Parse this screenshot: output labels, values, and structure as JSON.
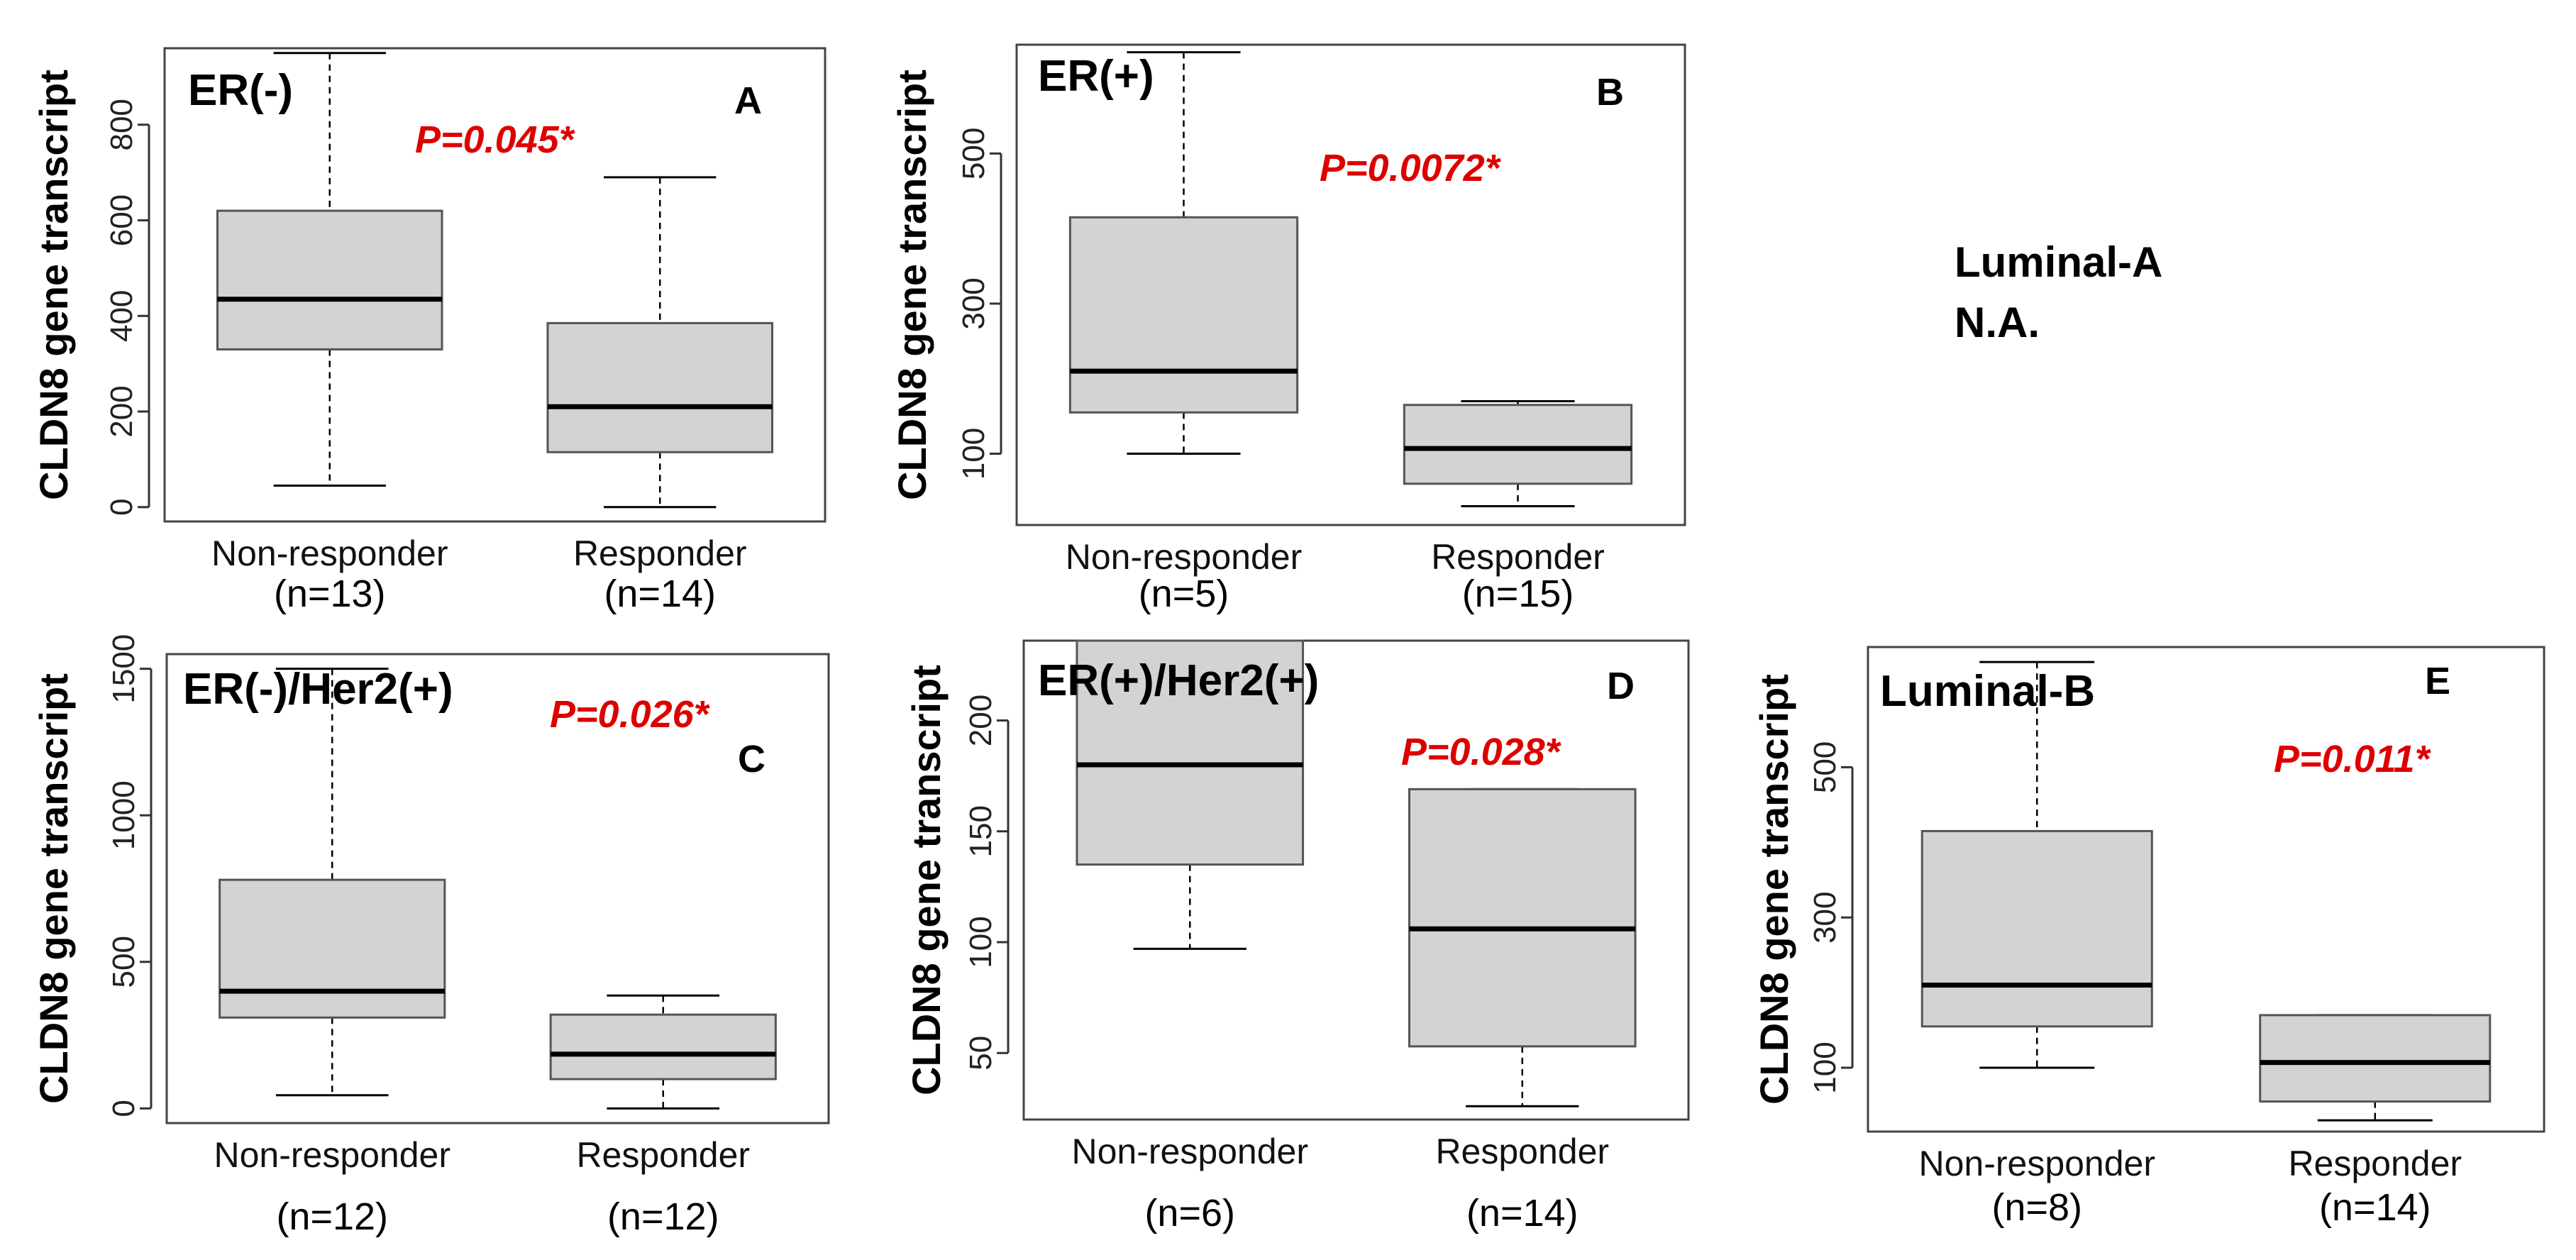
{
  "colors": {
    "box_fill": "#d3d3d3",
    "pvalue": "#dd0000",
    "line": "#000000",
    "frame": "#444444"
  },
  "note": {
    "line1": "Luminal-A",
    "line2": "N.A."
  },
  "chart_data": [
    {
      "type": "boxplot",
      "letter": "A",
      "title": "ER(-)",
      "pvalue": "P=0.045*",
      "ylabel": "CLDN8 gene transcript",
      "ylim": [
        -30,
        960
      ],
      "yticks": [
        0,
        200,
        400,
        600,
        800
      ],
      "categories": [
        "Non-responder",
        "Responder"
      ],
      "n_labels": [
        "(n=13)",
        "(n=14)"
      ],
      "boxes": [
        {
          "min": 45,
          "q1": 330,
          "median": 435,
          "q3": 620,
          "max": 950
        },
        {
          "min": 0,
          "q1": 115,
          "median": 210,
          "q3": 385,
          "max": 690
        }
      ]
    },
    {
      "type": "boxplot",
      "letter": "B",
      "title": "ER(+)",
      "pvalue": "P=0.0072*",
      "ylabel": "CLDN8 gene transcript",
      "ylim": [
        5,
        645
      ],
      "yticks": [
        100,
        300,
        500
      ],
      "categories": [
        "Non-responder",
        "Responder"
      ],
      "n_labels": [
        "(n=5)",
        "(n=15)"
      ],
      "boxes": [
        {
          "min": 100,
          "q1": 155,
          "median": 210,
          "q3": 415,
          "max": 635
        },
        {
          "min": 30,
          "q1": 60,
          "median": 107,
          "q3": 165,
          "max": 170
        }
      ]
    },
    {
      "type": "boxplot",
      "letter": "C",
      "title": "ER(-)/Her2(+)",
      "pvalue": "P=0.026*",
      "ylabel": "CLDN8 gene transcript",
      "ylim": [
        -50,
        1550
      ],
      "yticks": [
        0,
        500,
        1000,
        1500
      ],
      "categories": [
        "Non-responder",
        "Responder"
      ],
      "n_labels": [
        "(n=12)",
        "(n=12)"
      ],
      "boxes": [
        {
          "min": 45,
          "q1": 310,
          "median": 400,
          "q3": 780,
          "max": 1500
        },
        {
          "min": 0,
          "q1": 100,
          "median": 185,
          "q3": 320,
          "max": 385
        }
      ]
    },
    {
      "type": "boxplot",
      "letter": "D",
      "title": "ER(+)/Her2(+)",
      "pvalue": "P=0.028*",
      "ylabel": "CLDN8 gene transcript",
      "ylim": [
        20,
        236
      ],
      "yticks": [
        50,
        100,
        150,
        200
      ],
      "categories": [
        "Non-responder",
        "Responder"
      ],
      "n_labels": [
        "(n=6)",
        "(n=14)"
      ],
      "boxes": [
        {
          "min": 97,
          "q1": 135,
          "median": 180,
          "q3": 236,
          "max": 236
        },
        {
          "min": 26,
          "q1": 53,
          "median": 106,
          "q3": 169,
          "max": 169
        }
      ]
    },
    {
      "type": "boxplot",
      "letter": "E",
      "title": "Luminal-B",
      "pvalue": "P=0.011*",
      "ylabel": "CLDN8 gene transcript",
      "ylim": [
        15,
        660
      ],
      "yticks": [
        100,
        300,
        500
      ],
      "categories": [
        "Non-responder",
        "Responder"
      ],
      "n_labels": [
        "(n=8)",
        "(n=14)"
      ],
      "boxes": [
        {
          "min": 100,
          "q1": 155,
          "median": 210,
          "q3": 415,
          "max": 640
        },
        {
          "min": 30,
          "q1": 55,
          "median": 107,
          "q3": 170,
          "max": 170
        }
      ]
    }
  ]
}
